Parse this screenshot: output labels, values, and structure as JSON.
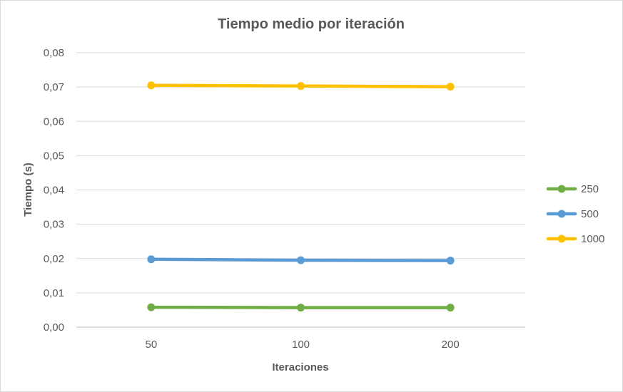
{
  "chart_data": {
    "type": "line",
    "title": "Tiempo medio por iteración",
    "xlabel": "Iteraciones",
    "ylabel": "Tiempo (s)",
    "categories": [
      "50",
      "100",
      "200"
    ],
    "ylim": [
      0,
      0.08
    ],
    "yticks": [
      "0,00",
      "0,01",
      "0,02",
      "0,03",
      "0,04",
      "0,05",
      "0,06",
      "0,07",
      "0,08"
    ],
    "grid": true,
    "legend_position": "right",
    "series": [
      {
        "name": "250",
        "color": "#70ad47",
        "values": [
          0.0058,
          0.0057,
          0.0057
        ]
      },
      {
        "name": "500",
        "color": "#5b9bd5",
        "values": [
          0.0198,
          0.0195,
          0.0194
        ]
      },
      {
        "name": "1000",
        "color": "#ffc000",
        "values": [
          0.0705,
          0.0703,
          0.0701
        ]
      }
    ]
  }
}
